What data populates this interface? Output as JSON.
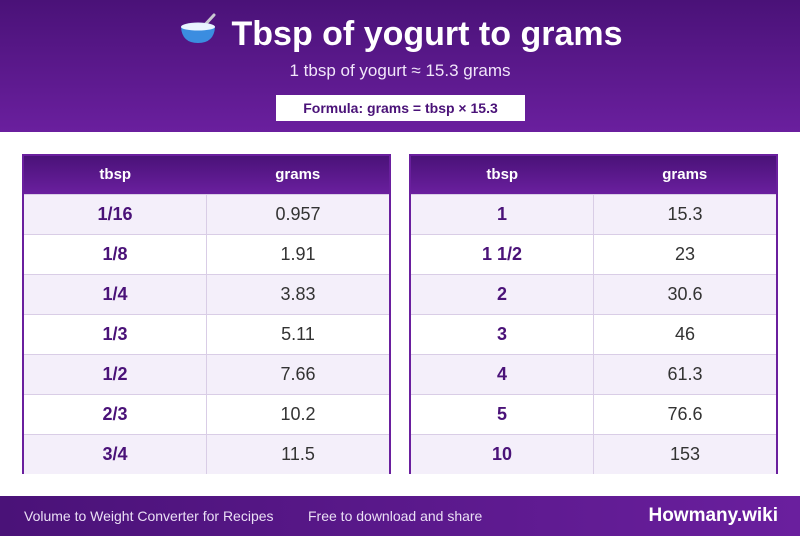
{
  "header": {
    "title": "Tbsp of yogurt to grams",
    "icon": "bowl-with-spoon-icon",
    "subtitle": "1 tbsp of yogurt ≈ 15.3 grams",
    "formula": "Formula: grams = tbsp × 15.3"
  },
  "tables": [
    {
      "col1": "tbsp",
      "col2": "grams",
      "rows": [
        {
          "tbsp": "1/16",
          "grams": "0.957"
        },
        {
          "tbsp": "1/8",
          "grams": "1.91"
        },
        {
          "tbsp": "1/4",
          "grams": "3.83"
        },
        {
          "tbsp": "1/3",
          "grams": "5.11"
        },
        {
          "tbsp": "1/2",
          "grams": "7.66"
        },
        {
          "tbsp": "2/3",
          "grams": "10.2"
        },
        {
          "tbsp": "3/4",
          "grams": "11.5"
        }
      ]
    },
    {
      "col1": "tbsp",
      "col2": "grams",
      "rows": [
        {
          "tbsp": "1",
          "grams": "15.3"
        },
        {
          "tbsp": "1 1/2",
          "grams": "23"
        },
        {
          "tbsp": "2",
          "grams": "30.6"
        },
        {
          "tbsp": "3",
          "grams": "46"
        },
        {
          "tbsp": "4",
          "grams": "61.3"
        },
        {
          "tbsp": "5",
          "grams": "76.6"
        },
        {
          "tbsp": "10",
          "grams": "153"
        }
      ]
    }
  ],
  "footer": {
    "left": "Volume to Weight Converter for Recipes",
    "middle": "Free to download and share",
    "brand": "Howmany.wiki"
  },
  "colors": {
    "accent": "#6a1f9e",
    "accent_dark": "#4a1278",
    "row_alt": "#f4effa"
  }
}
